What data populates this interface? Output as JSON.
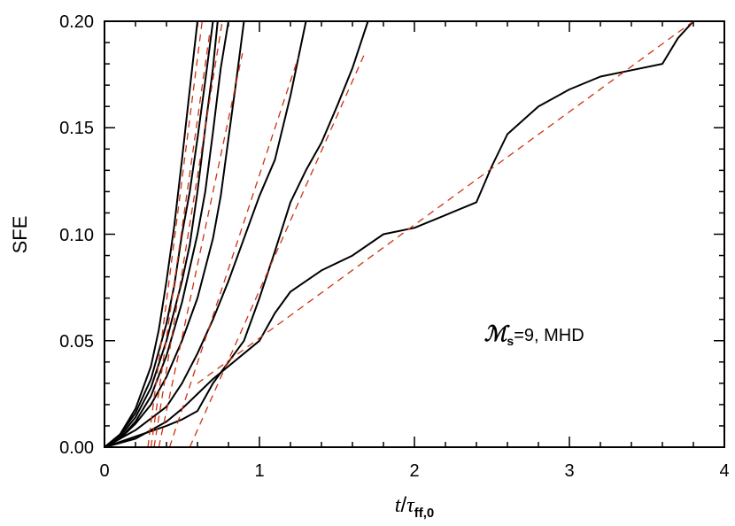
{
  "chart_data": {
    "type": "line",
    "title": "",
    "ylabel": "SFE",
    "xlabel_main": "t",
    "xlabel_sep": "/",
    "xlabel_sym": "τ",
    "xlabel_sub": "ff,0",
    "xlim": [
      0,
      4
    ],
    "ylim": [
      0,
      0.2
    ],
    "x_ticks": [
      "0",
      "1",
      "2",
      "3",
      "4"
    ],
    "y_ticks": [
      "0.00",
      "0.05",
      "0.10",
      "0.15",
      "0.20"
    ],
    "grid": false,
    "legend": "none",
    "annotation": {
      "symbol": "ℳ",
      "subscript": "s",
      "text": "=9,  MHD",
      "position_x": 2.45,
      "position_y": 0.05
    },
    "colors": {
      "simulation": "#000000",
      "fit": "#cc3311"
    },
    "series": [
      {
        "style": "solid",
        "x": [
          0,
          0.1,
          0.2,
          0.3,
          0.35,
          0.4,
          0.45,
          0.5,
          0.55,
          0.6
        ],
        "y": [
          0,
          0.006,
          0.018,
          0.038,
          0.055,
          0.078,
          0.104,
          0.135,
          0.168,
          0.2
        ]
      },
      {
        "style": "solid",
        "x": [
          0,
          0.1,
          0.2,
          0.3,
          0.4,
          0.45,
          0.5,
          0.55,
          0.6,
          0.65,
          0.7
        ],
        "y": [
          0,
          0.006,
          0.016,
          0.032,
          0.058,
          0.076,
          0.1,
          0.12,
          0.145,
          0.172,
          0.2
        ]
      },
      {
        "style": "solid",
        "x": [
          0,
          0.1,
          0.2,
          0.3,
          0.4,
          0.5,
          0.55,
          0.6,
          0.65,
          0.7,
          0.73
        ],
        "y": [
          0,
          0.005,
          0.014,
          0.028,
          0.05,
          0.078,
          0.095,
          0.12,
          0.15,
          0.178,
          0.2
        ]
      },
      {
        "style": "solid",
        "x": [
          0,
          0.1,
          0.2,
          0.3,
          0.4,
          0.5,
          0.6,
          0.65,
          0.7,
          0.75,
          0.8
        ],
        "y": [
          0,
          0.004,
          0.012,
          0.024,
          0.043,
          0.068,
          0.1,
          0.12,
          0.148,
          0.178,
          0.2
        ]
      },
      {
        "style": "solid",
        "x": [
          0,
          0.1,
          0.2,
          0.3,
          0.4,
          0.5,
          0.6,
          0.7,
          0.75,
          0.8,
          0.85,
          0.9
        ],
        "y": [
          0,
          0.004,
          0.011,
          0.02,
          0.033,
          0.05,
          0.07,
          0.098,
          0.118,
          0.145,
          0.172,
          0.2
        ]
      },
      {
        "style": "solid",
        "x": [
          0,
          0.2,
          0.4,
          0.5,
          0.6,
          0.7,
          0.8,
          0.9,
          1.0,
          1.1,
          1.2,
          1.3
        ],
        "y": [
          0,
          0.008,
          0.019,
          0.03,
          0.044,
          0.06,
          0.078,
          0.098,
          0.118,
          0.135,
          0.165,
          0.2
        ]
      },
      {
        "style": "solid",
        "x": [
          0,
          0.2,
          0.4,
          0.5,
          0.6,
          0.7,
          0.8,
          0.9,
          1.0,
          1.1,
          1.2,
          1.3,
          1.4,
          1.5,
          1.6,
          1.7
        ],
        "y": [
          0,
          0.005,
          0.01,
          0.013,
          0.017,
          0.03,
          0.04,
          0.05,
          0.07,
          0.092,
          0.115,
          0.13,
          0.143,
          0.16,
          0.178,
          0.2
        ]
      },
      {
        "style": "solid",
        "x": [
          0,
          0.2,
          0.3,
          0.4,
          0.5,
          0.6,
          0.7,
          0.8,
          0.9,
          1.0,
          1.1,
          1.2,
          1.4,
          1.6,
          1.8,
          2.0,
          2.2,
          2.4,
          2.5,
          2.6,
          2.8,
          3.0,
          3.2,
          3.4,
          3.6,
          3.7,
          3.8
        ],
        "y": [
          0,
          0.004,
          0.008,
          0.012,
          0.018,
          0.025,
          0.032,
          0.038,
          0.044,
          0.05,
          0.063,
          0.073,
          0.083,
          0.09,
          0.1,
          0.103,
          0.109,
          0.115,
          0.132,
          0.147,
          0.16,
          0.168,
          0.174,
          0.177,
          0.18,
          0.192,
          0.2
        ]
      },
      {
        "style": "dashed",
        "x": [
          0.28,
          0.63
        ],
        "y": [
          0,
          0.2
        ]
      },
      {
        "style": "dashed",
        "x": [
          0.3,
          0.68
        ],
        "y": [
          0,
          0.195
        ]
      },
      {
        "style": "dashed",
        "x": [
          0.32,
          0.76
        ],
        "y": [
          0,
          0.2
        ]
      },
      {
        "style": "dashed",
        "x": [
          0.35,
          0.89
        ],
        "y": [
          0,
          0.185
        ]
      },
      {
        "style": "dashed",
        "x": [
          0.42,
          1.25
        ],
        "y": [
          0,
          0.183
        ]
      },
      {
        "style": "dashed",
        "x": [
          0.55,
          1.68
        ],
        "y": [
          0,
          0.185
        ]
      },
      {
        "style": "dashed",
        "x": [
          0.6,
          3.8
        ],
        "y": [
          0.03,
          0.2
        ]
      }
    ]
  }
}
